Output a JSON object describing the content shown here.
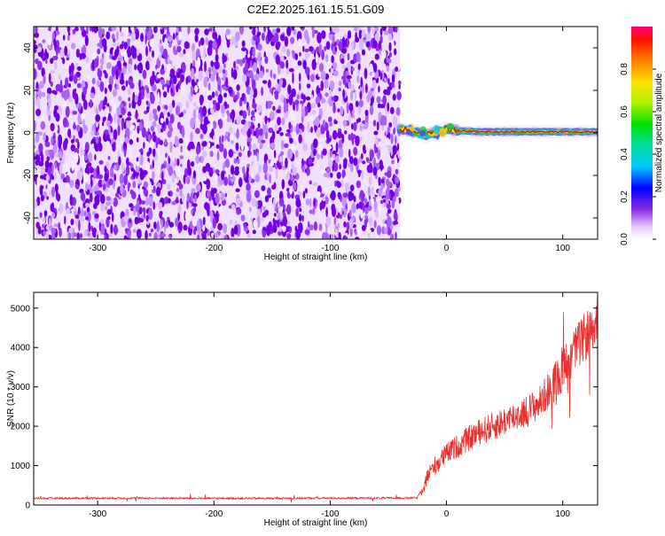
{
  "title": "C2E2.2025.161.15.51.G09",
  "colors": {
    "snr_line": "#e8312e",
    "noise_purple": "#7a00e6",
    "track_core": "#e00000"
  },
  "chart_data": [
    {
      "type": "heatmap",
      "xlabel": "Height of straight line (km)",
      "ylabel": "Frequency (Hz)",
      "xlim": [
        -355,
        130
      ],
      "ylim": [
        -50,
        50
      ],
      "xticks": [
        -300,
        -200,
        -100,
        0,
        100
      ],
      "yticks": [
        -40,
        -20,
        0,
        20,
        40
      ],
      "noise_region_x": [
        -355,
        -40
      ],
      "signal_track": {
        "description_points_x": [
          -40,
          -30,
          -20,
          -10,
          0,
          10,
          30,
          60,
          100,
          130
        ],
        "frequency_hz": [
          2,
          1,
          -1,
          0,
          2,
          1,
          0.5,
          0.5,
          0.5,
          0.5
        ]
      },
      "colorbar": {
        "label": "Normalized spectral amplitude",
        "range": [
          0,
          1
        ],
        "ticks": [
          0.0,
          0.2,
          0.4,
          0.6,
          0.8
        ]
      }
    },
    {
      "type": "line",
      "xlabel": "Height of straight line (km)",
      "ylabel": "SNR (10 * v/v)",
      "xlim": [
        -355,
        130
      ],
      "ylim": [
        0,
        5400
      ],
      "xticks": [
        -300,
        -200,
        -100,
        0,
        100
      ],
      "yticks": [
        0,
        1000,
        2000,
        3000,
        4000,
        5000
      ],
      "series": [
        {
          "x": [
            -355,
            -300,
            -250,
            -200,
            -150,
            -100,
            -50,
            -25,
            -20,
            -15,
            -10,
            0,
            10,
            25,
            40,
            55,
            70,
            80,
            90,
            100,
            105,
            110,
            120,
            130
          ],
          "values": [
            170,
            175,
            175,
            170,
            170,
            175,
            175,
            180,
            500,
            800,
            1000,
            1300,
            1500,
            1800,
            2000,
            2200,
            2400,
            2600,
            3000,
            3400,
            3700,
            3900,
            4300,
            4700
          ]
        }
      ]
    }
  ]
}
